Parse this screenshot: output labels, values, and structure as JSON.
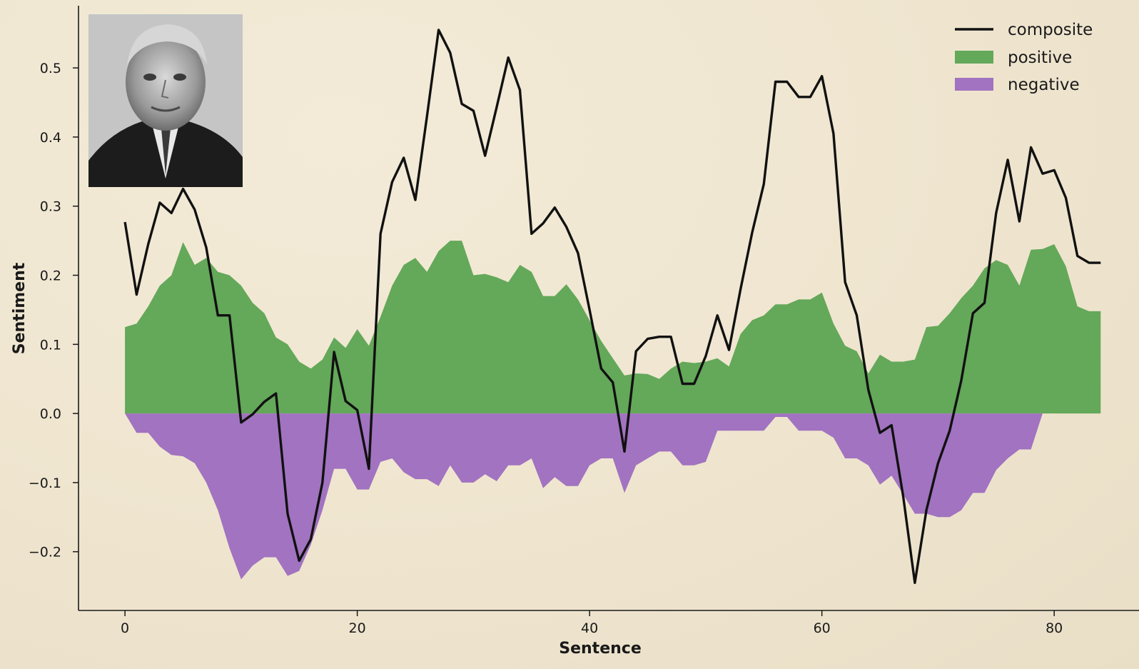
{
  "chart_data": {
    "type": "area",
    "title": "",
    "xlabel": "Sentence",
    "ylabel": "Sentiment",
    "xlim": [
      -4,
      87.3
    ],
    "ylim": [
      -0.285,
      0.59
    ],
    "xticks": [
      0,
      20,
      40,
      60,
      80
    ],
    "xtick_labels": [
      "0",
      "20",
      "40",
      "60",
      "80"
    ],
    "yticks": [
      -0.2,
      -0.1,
      0.0,
      0.1,
      0.2,
      0.3,
      0.4,
      0.5
    ],
    "ytick_labels": [
      "−0.2",
      "−0.1",
      "0.0",
      "0.1",
      "0.2",
      "0.3",
      "0.4",
      "0.5"
    ],
    "legend_position": "top-right",
    "grid": false,
    "x": [
      0,
      1,
      2,
      3,
      4,
      5,
      6,
      7,
      8,
      9,
      10,
      11,
      12,
      13,
      14,
      15,
      16,
      17,
      18,
      19,
      20,
      21,
      22,
      23,
      24,
      25,
      26,
      27,
      28,
      29,
      30,
      31,
      32,
      33,
      34,
      35,
      36,
      37,
      38,
      39,
      40,
      41,
      42,
      43,
      44,
      45,
      46,
      47,
      48,
      49,
      50,
      51,
      52,
      53,
      54,
      55,
      56,
      57,
      58,
      59,
      60,
      61,
      62,
      63,
      64,
      65,
      66,
      67,
      68,
      69,
      70,
      71,
      72,
      73,
      74,
      75,
      76,
      77,
      78,
      79,
      80,
      81,
      82,
      83,
      84
    ],
    "series": [
      {
        "name": "composite",
        "kind": "line",
        "color": "#111111",
        "values": [
          0.277,
          0.172,
          0.245,
          0.305,
          0.29,
          0.325,
          0.295,
          0.24,
          0.142,
          0.142,
          -0.013,
          -0.001,
          0.017,
          0.029,
          -0.145,
          -0.213,
          -0.182,
          -0.1,
          0.089,
          0.018,
          0.005,
          -0.08,
          0.26,
          0.335,
          0.37,
          0.309,
          0.43,
          0.555,
          0.522,
          0.448,
          0.438,
          0.373,
          0.443,
          0.515,
          0.468,
          0.26,
          0.275,
          0.298,
          0.27,
          0.232,
          0.15,
          0.065,
          0.045,
          -0.055,
          0.09,
          0.108,
          0.111,
          0.111,
          0.043,
          0.043,
          0.083,
          0.142,
          0.092,
          0.18,
          0.262,
          0.332,
          0.48,
          0.48,
          0.458,
          0.458,
          0.488,
          0.405,
          0.19,
          0.142,
          0.034,
          -0.028,
          -0.017,
          -0.12,
          -0.245,
          -0.14,
          -0.072,
          -0.025,
          0.048,
          0.145,
          0.16,
          0.29,
          0.367,
          0.278,
          0.385,
          0.347,
          0.352,
          0.312,
          0.228,
          0.218,
          0.218
        ]
      },
      {
        "name": "positive",
        "kind": "area",
        "color": "#64a85a",
        "values": [
          0.125,
          0.13,
          0.155,
          0.185,
          0.2,
          0.248,
          0.215,
          0.225,
          0.205,
          0.2,
          0.185,
          0.16,
          0.145,
          0.11,
          0.1,
          0.075,
          0.065,
          0.078,
          0.11,
          0.095,
          0.122,
          0.098,
          0.14,
          0.185,
          0.215,
          0.225,
          0.205,
          0.235,
          0.25,
          0.25,
          0.2,
          0.202,
          0.197,
          0.19,
          0.215,
          0.205,
          0.17,
          0.17,
          0.187,
          0.165,
          0.135,
          0.105,
          0.08,
          0.055,
          0.058,
          0.057,
          0.05,
          0.065,
          0.075,
          0.073,
          0.075,
          0.08,
          0.068,
          0.115,
          0.135,
          0.142,
          0.158,
          0.158,
          0.165,
          0.165,
          0.175,
          0.13,
          0.098,
          0.09,
          0.058,
          0.085,
          0.075,
          0.075,
          0.078,
          0.125,
          0.127,
          0.145,
          0.167,
          0.185,
          0.21,
          0.222,
          0.215,
          0.185,
          0.237,
          0.238,
          0.245,
          0.213,
          0.155,
          0.148,
          0.148
        ]
      },
      {
        "name": "negative",
        "kind": "area",
        "color": "#a173c0",
        "values": [
          0.0,
          -0.028,
          -0.028,
          -0.048,
          -0.06,
          -0.062,
          -0.072,
          -0.1,
          -0.14,
          -0.195,
          -0.24,
          -0.22,
          -0.208,
          -0.208,
          -0.235,
          -0.228,
          -0.19,
          -0.14,
          -0.08,
          -0.08,
          -0.11,
          -0.11,
          -0.07,
          -0.065,
          -0.085,
          -0.095,
          -0.095,
          -0.105,
          -0.075,
          -0.1,
          -0.1,
          -0.088,
          -0.098,
          -0.075,
          -0.075,
          -0.065,
          -0.108,
          -0.092,
          -0.105,
          -0.105,
          -0.075,
          -0.065,
          -0.065,
          -0.115,
          -0.075,
          -0.065,
          -0.055,
          -0.055,
          -0.075,
          -0.075,
          -0.07,
          -0.025,
          -0.025,
          -0.025,
          -0.025,
          -0.025,
          -0.005,
          -0.005,
          -0.025,
          -0.025,
          -0.025,
          -0.035,
          -0.065,
          -0.065,
          -0.075,
          -0.103,
          -0.09,
          -0.117,
          -0.145,
          -0.145,
          -0.15,
          -0.15,
          -0.14,
          -0.115,
          -0.115,
          -0.082,
          -0.065,
          -0.052,
          -0.052,
          0.0,
          0.0,
          0.0,
          0.0,
          0.0,
          0.0
        ]
      }
    ]
  },
  "legend": {
    "composite_label": "composite",
    "positive_label": "positive",
    "negative_label": "negative"
  },
  "labels": {
    "xlabel": "Sentence",
    "ylabel": "Sentiment"
  }
}
